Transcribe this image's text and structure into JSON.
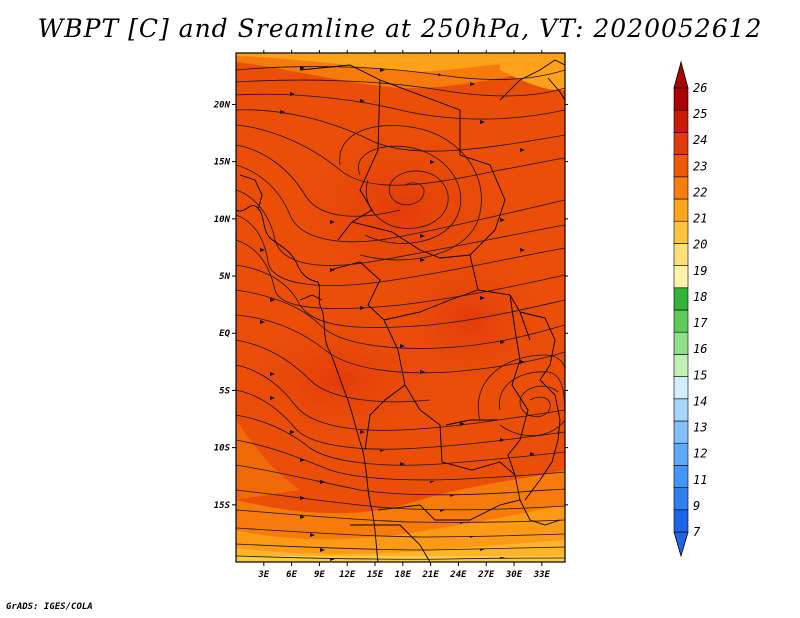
{
  "title": "WBPT [C] and Sreamline at 250hPa, VT: 2020052612",
  "credit": "GrADS: IGES/COLA",
  "map": {
    "lon_range": [
      0,
      35.5
    ],
    "lat_range": [
      -20,
      24.5
    ],
    "lon_ticks": [
      "3E",
      "6E",
      "9E",
      "12E",
      "15E",
      "18E",
      "21E",
      "24E",
      "27E",
      "30E",
      "33E"
    ],
    "lon_tick_values": [
      3,
      6,
      9,
      12,
      15,
      18,
      21,
      24,
      27,
      30,
      33
    ],
    "lat_ticks": [
      "20N",
      "15N",
      "10N",
      "5N",
      "EQ",
      "5S",
      "10S",
      "15S"
    ],
    "lat_tick_values": [
      20,
      15,
      10,
      5,
      0,
      -5,
      -10,
      -15
    ]
  },
  "colorbar": {
    "labels": [
      "7",
      "9",
      "11",
      "12",
      "13",
      "14",
      "15",
      "16",
      "17",
      "18",
      "19",
      "20",
      "21",
      "22",
      "23",
      "24",
      "25",
      "26"
    ],
    "colors": [
      "#1f64e6",
      "#2d7ff2",
      "#4496f5",
      "#5faaf7",
      "#82c0fa",
      "#a6d6fb",
      "#d2eefc",
      "#bff0b4",
      "#8fe08a",
      "#5ccb5a",
      "#34b437",
      "#fff3a8",
      "#fde07a",
      "#fcc440",
      "#fca61a",
      "#f77d0c",
      "#ee5a08",
      "#e23a0a",
      "#cc1a08",
      "#aa0404"
    ],
    "pointer_low": "#1f64e6",
    "pointer_high": "#aa0404"
  }
}
